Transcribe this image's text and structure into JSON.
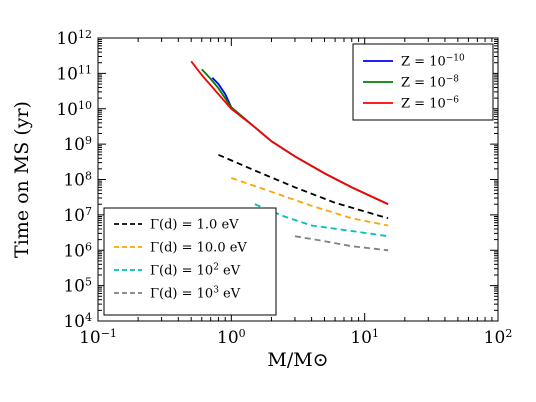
{
  "chart_data": {
    "type": "line",
    "xlabel": "M/M⊙",
    "ylabel": "Time on MS (yr)",
    "xscale": "log",
    "yscale": "log",
    "xlim": [
      0.1,
      100
    ],
    "ylim": [
      10000,
      1000000000000
    ],
    "x_ticks": [
      {
        "value": 0.1,
        "base": "10",
        "exp": "−1"
      },
      {
        "value": 1,
        "base": "10",
        "exp": "0"
      },
      {
        "value": 10,
        "base": "10",
        "exp": "1"
      },
      {
        "value": 100,
        "base": "10",
        "exp": "2"
      }
    ],
    "y_ticks": [
      {
        "value": 10000,
        "base": "10",
        "exp": "4"
      },
      {
        "value": 100000,
        "base": "10",
        "exp": "5"
      },
      {
        "value": 1000000,
        "base": "10",
        "exp": "6"
      },
      {
        "value": 10000000,
        "base": "10",
        "exp": "7"
      },
      {
        "value": 100000000,
        "base": "10",
        "exp": "8"
      },
      {
        "value": 1000000000,
        "base": "10",
        "exp": "9"
      },
      {
        "value": 10000000000,
        "base": "10",
        "exp": "10"
      },
      {
        "value": 100000000000,
        "base": "10",
        "exp": "11"
      },
      {
        "value": 1000000000000,
        "base": "10",
        "exp": "12"
      }
    ],
    "grid": false,
    "series": [
      {
        "name": "Z = 10^-10",
        "label_left": "Z = 10",
        "label_exp": "−10",
        "color": "#0000ff",
        "style": "solid",
        "legend": "top-right",
        "x": [
          0.72,
          0.8,
          0.9,
          1.0,
          1.5,
          2,
          3,
          5,
          8,
          15
        ],
        "y": [
          75000000000,
          50000000000,
          26000000000,
          11000000000,
          3000000000,
          1200000000,
          450000000,
          150000000,
          60000000,
          20000000
        ]
      },
      {
        "name": "Z = 10^-8",
        "label_left": "Z = 10",
        "label_exp": "−8",
        "color": "#008000",
        "style": "solid",
        "legend": "top-right",
        "x": [
          0.6,
          0.7,
          0.8,
          1.0,
          1.5,
          2,
          3,
          5,
          8,
          15
        ],
        "y": [
          130000000000,
          70000000000,
          38000000000,
          11000000000,
          3000000000,
          1200000000,
          450000000,
          150000000,
          60000000,
          20000000
        ]
      },
      {
        "name": "Z = 10^-6",
        "label_left": "Z = 10",
        "label_exp": "−6",
        "color": "#ff0000",
        "style": "solid",
        "legend": "top-right",
        "x": [
          0.5,
          0.6,
          0.8,
          1.0,
          1.5,
          2,
          3,
          5,
          8,
          15
        ],
        "y": [
          220000000000,
          90000000000,
          26000000000,
          10000000000,
          3000000000,
          1200000000,
          450000000,
          150000000,
          60000000,
          20000000
        ]
      },
      {
        "name": "Γ(d) = 1.0 eV",
        "label_left": "Γ(d) = 1.0 eV",
        "label_exp": "",
        "color": "#000000",
        "style": "dashed",
        "legend": "bottom-left",
        "x": [
          0.8,
          1.5,
          3,
          6,
          15
        ],
        "y": [
          500000000,
          180000000,
          60000000,
          22000000,
          8000000
        ]
      },
      {
        "name": "Γ(d) = 10.0 eV",
        "label_left": "Γ(d) = 10.0 eV",
        "label_exp": "",
        "color": "#ffa500",
        "style": "dashed",
        "legend": "bottom-left",
        "x": [
          1.0,
          2,
          4,
          8,
          15
        ],
        "y": [
          110000000,
          45000000,
          18000000,
          8000000,
          5000000
        ]
      },
      {
        "name": "Γ(d) = 10^2 eV",
        "label_left": "Γ(d) = 10",
        "label_exp": "2",
        "label_right": " eV",
        "color": "#00bfbf",
        "style": "dashed",
        "legend": "bottom-left",
        "x": [
          1.5,
          2.5,
          4,
          8,
          15
        ],
        "y": [
          20000000,
          9000000,
          5000000,
          3500000,
          2500000
        ]
      },
      {
        "name": "Γ(d) = 10^3 eV",
        "label_left": "Γ(d) = 10",
        "label_exp": "3",
        "label_right": " eV",
        "color": "#808080",
        "style": "dashed",
        "legend": "bottom-left",
        "x": [
          3,
          5,
          8,
          15
        ],
        "y": [
          2500000,
          1800000,
          1300000,
          1000000
        ]
      }
    ],
    "legends": {
      "top-right": [
        "Z = 10^-10",
        "Z = 10^-8",
        "Z = 10^-6"
      ],
      "bottom-left": [
        "Γ(d) = 1.0 eV",
        "Γ(d) = 10.0 eV",
        "Γ(d) = 10^2 eV",
        "Γ(d) = 10^3 eV"
      ]
    }
  }
}
